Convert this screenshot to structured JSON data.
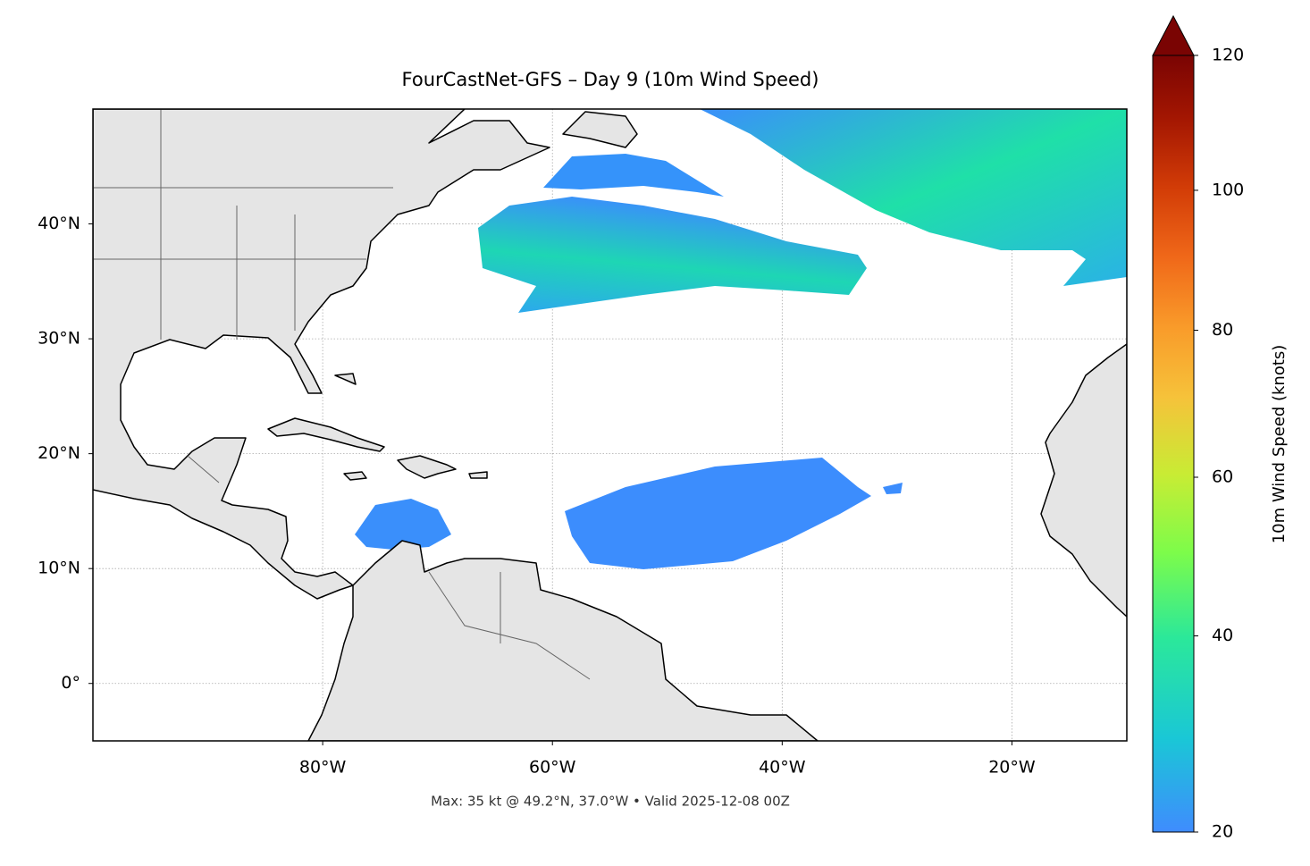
{
  "chart_data": {
    "type": "map",
    "title": "FourCastNet-GFS – Day 9 (10m Wind Speed)",
    "footer": "Max: 35 kt @ 49.2°N, 37.0°W • Valid 2025-12-08 00Z",
    "xlim": [
      -100,
      -10
    ],
    "ylim": [
      -5,
      50
    ],
    "xticks": [
      {
        "value": -80,
        "label": "80°W"
      },
      {
        "value": -60,
        "label": "60°W"
      },
      {
        "value": -40,
        "label": "40°W"
      },
      {
        "value": -20,
        "label": "20°W"
      }
    ],
    "yticks": [
      {
        "value": 0,
        "label": "0°"
      },
      {
        "value": 10,
        "label": "10°N"
      },
      {
        "value": 20,
        "label": "20°N"
      },
      {
        "value": 30,
        "label": "30°N"
      },
      {
        "value": 40,
        "label": "40°N"
      }
    ],
    "grid": true,
    "colorbar": {
      "label": "10m Wind Speed (knots)",
      "lim": [
        20,
        120
      ],
      "ticks": [
        20,
        40,
        60,
        80,
        100,
        120
      ],
      "extend": "max"
    }
  }
}
